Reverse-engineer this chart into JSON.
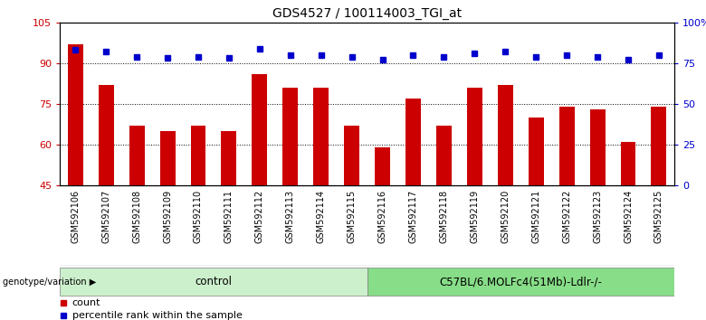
{
  "title": "GDS4527 / 100114003_TGI_at",
  "samples": [
    "GSM592106",
    "GSM592107",
    "GSM592108",
    "GSM592109",
    "GSM592110",
    "GSM592111",
    "GSM592112",
    "GSM592113",
    "GSM592114",
    "GSM592115",
    "GSM592116",
    "GSM592117",
    "GSM592118",
    "GSM592119",
    "GSM592120",
    "GSM592121",
    "GSM592122",
    "GSM592123",
    "GSM592124",
    "GSM592125"
  ],
  "counts": [
    97,
    82,
    67,
    65,
    67,
    65,
    86,
    81,
    81,
    67,
    59,
    77,
    67,
    81,
    82,
    70,
    74,
    73,
    61,
    74
  ],
  "percentile_ranks": [
    83,
    82,
    79,
    78,
    79,
    78,
    84,
    80,
    80,
    79,
    77,
    80,
    79,
    81,
    82,
    79,
    80,
    79,
    77,
    80
  ],
  "group_labels": [
    "control",
    "C57BL/6.MOLFc4(51Mb)-Ldlr-/-"
  ],
  "group_colors": [
    "#ccf0cc",
    "#88dd88"
  ],
  "ylim_left": [
    45,
    105
  ],
  "ylim_right": [
    0,
    100
  ],
  "yticks_left": [
    45,
    60,
    75,
    90,
    105
  ],
  "yticks_right": [
    0,
    25,
    50,
    75,
    100
  ],
  "yticklabels_right": [
    "0",
    "25",
    "50",
    "75",
    "100%"
  ],
  "bar_color": "#cc0000",
  "dot_color": "#0000cc",
  "bg_color": "#ffffff",
  "grid_color": "#000000",
  "label_color_left": "#cc0000",
  "label_color_right": "#0000cc",
  "legend_count_label": "count",
  "legend_pct_label": "percentile rank within the sample",
  "genotype_label": "genotype/variation",
  "sample_bg": "#cccccc",
  "n_control": 10,
  "n_total": 20
}
